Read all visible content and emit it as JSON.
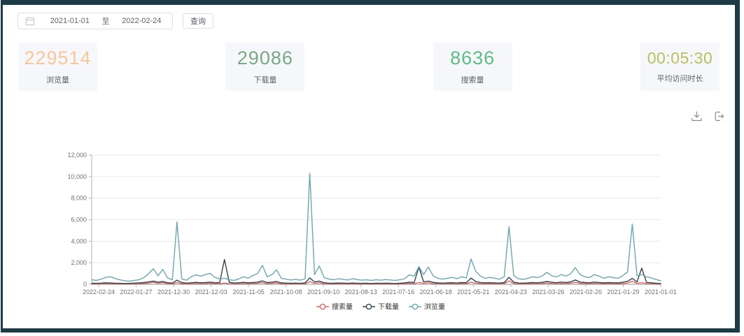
{
  "toolbar": {
    "start_date": "2021-01-01",
    "range_separator": "至",
    "end_date": "2022-02-24",
    "query_button": "查询"
  },
  "stats": {
    "cards": [
      {
        "value": "229514",
        "label": "浏览量",
        "color": "#f9c69b"
      },
      {
        "value": "29086",
        "label": "下载量",
        "color": "#7ca885"
      },
      {
        "value": "8636",
        "label": "搜索量",
        "color": "#5fbc83"
      },
      {
        "value": "00:05:30",
        "label": "平均访问时长",
        "color": "#b9c05c"
      }
    ]
  },
  "chart_toolbox": {
    "icons": [
      "save-image-icon",
      "export-icon"
    ]
  },
  "chart_data": {
    "type": "line",
    "title": "",
    "xlabel": "",
    "ylabel": "",
    "ylim": [
      0,
      12000
    ],
    "y_ticks": [
      "0",
      "2,000",
      "4,000",
      "6,000",
      "8,000",
      "10,000",
      "12,000"
    ],
    "grid": true,
    "legend_position": "bottom",
    "x_categories": [
      "2022-02-24",
      "2022-01-27",
      "2021-12-30",
      "2021-12-03",
      "2021-11-05",
      "2021-10-08",
      "2021-09-10",
      "2021-08-13",
      "2021-07-16",
      "2021-06-18",
      "2021-05-21",
      "2021-04-23",
      "2021-03-26",
      "2021-02-26",
      "2021-01-29",
      "2021-01-01"
    ],
    "series": [
      {
        "name": "搜索量",
        "color": "#e0665c",
        "values": [
          40,
          30,
          45,
          60,
          55,
          40,
          35,
          30,
          30,
          40,
          50,
          70,
          110,
          190,
          90,
          150,
          60,
          40,
          160,
          60,
          40,
          60,
          80,
          65,
          80,
          95,
          55,
          60,
          120,
          60,
          40,
          55,
          75,
          60,
          75,
          90,
          170,
          60,
          85,
          130,
          50,
          40,
          35,
          40,
          30,
          50,
          250,
          90,
          140,
          55,
          40,
          35,
          45,
          40,
          30,
          45,
          35,
          30,
          35,
          25,
          35,
          30,
          35,
          30,
          25,
          35,
          50,
          85,
          70,
          160,
          90,
          140,
          70,
          50,
          40,
          50,
          60,
          45,
          65,
          55,
          200,
          110,
          65,
          45,
          55,
          45,
          40,
          60,
          320,
          80,
          45,
          40,
          50,
          65,
          55,
          75,
          110,
          75,
          60,
          85,
          70,
          95,
          180,
          85,
          60,
          55,
          85,
          70,
          50,
          65,
          55,
          50,
          75,
          120,
          280,
          90,
          150,
          70,
          55,
          40,
          25
        ]
      },
      {
        "name": "下载量",
        "color": "#2f4554",
        "values": [
          100,
          90,
          110,
          140,
          120,
          100,
          90,
          80,
          90,
          110,
          130,
          160,
          220,
          300,
          200,
          260,
          150,
          120,
          380,
          160,
          110,
          140,
          180,
          150,
          170,
          200,
          140,
          160,
          2300,
          200,
          120,
          140,
          180,
          140,
          170,
          200,
          320,
          160,
          200,
          260,
          130,
          110,
          100,
          110,
          90,
          130,
          600,
          220,
          300,
          150,
          110,
          100,
          120,
          110,
          90,
          120,
          100,
          90,
          100,
          80,
          100,
          90,
          100,
          90,
          80,
          100,
          130,
          200,
          170,
          1600,
          220,
          300,
          180,
          130,
          110,
          130,
          150,
          120,
          160,
          140,
          580,
          260,
          170,
          130,
          150,
          130,
          110,
          160,
          650,
          200,
          120,
          110,
          130,
          160,
          140,
          180,
          260,
          190,
          150,
          210,
          170,
          230,
          400,
          210,
          160,
          140,
          210,
          170,
          130,
          160,
          140,
          130,
          190,
          280,
          550,
          220,
          1500,
          180,
          140,
          100,
          70
        ]
      },
      {
        "name": "浏览量",
        "color": "#6ca7af",
        "values": [
          420,
          360,
          480,
          640,
          700,
          540,
          410,
          330,
          300,
          360,
          430,
          620,
          980,
          1450,
          800,
          1380,
          600,
          420,
          5800,
          500,
          380,
          700,
          880,
          760,
          900,
          1020,
          640,
          500,
          560,
          420,
          360,
          500,
          700,
          560,
          820,
          1000,
          1760,
          700,
          900,
          1350,
          560,
          480,
          400,
          460,
          380,
          520,
          10320,
          900,
          1700,
          620,
          480,
          420,
          520,
          460,
          400,
          520,
          440,
          380,
          420,
          360,
          420,
          380,
          440,
          400,
          360,
          420,
          520,
          880,
          760,
          1650,
          900,
          1600,
          800,
          560,
          480,
          560,
          640,
          520,
          700,
          600,
          2350,
          1200,
          760,
          560,
          640,
          560,
          480,
          700,
          5350,
          800,
          520,
          460,
          560,
          700,
          620,
          780,
          1100,
          800,
          680,
          900,
          760,
          980,
          1550,
          900,
          700,
          620,
          900,
          760,
          560,
          700,
          620,
          560,
          800,
          1150,
          5600,
          800,
          900,
          700,
          600,
          450,
          320
        ]
      }
    ]
  }
}
